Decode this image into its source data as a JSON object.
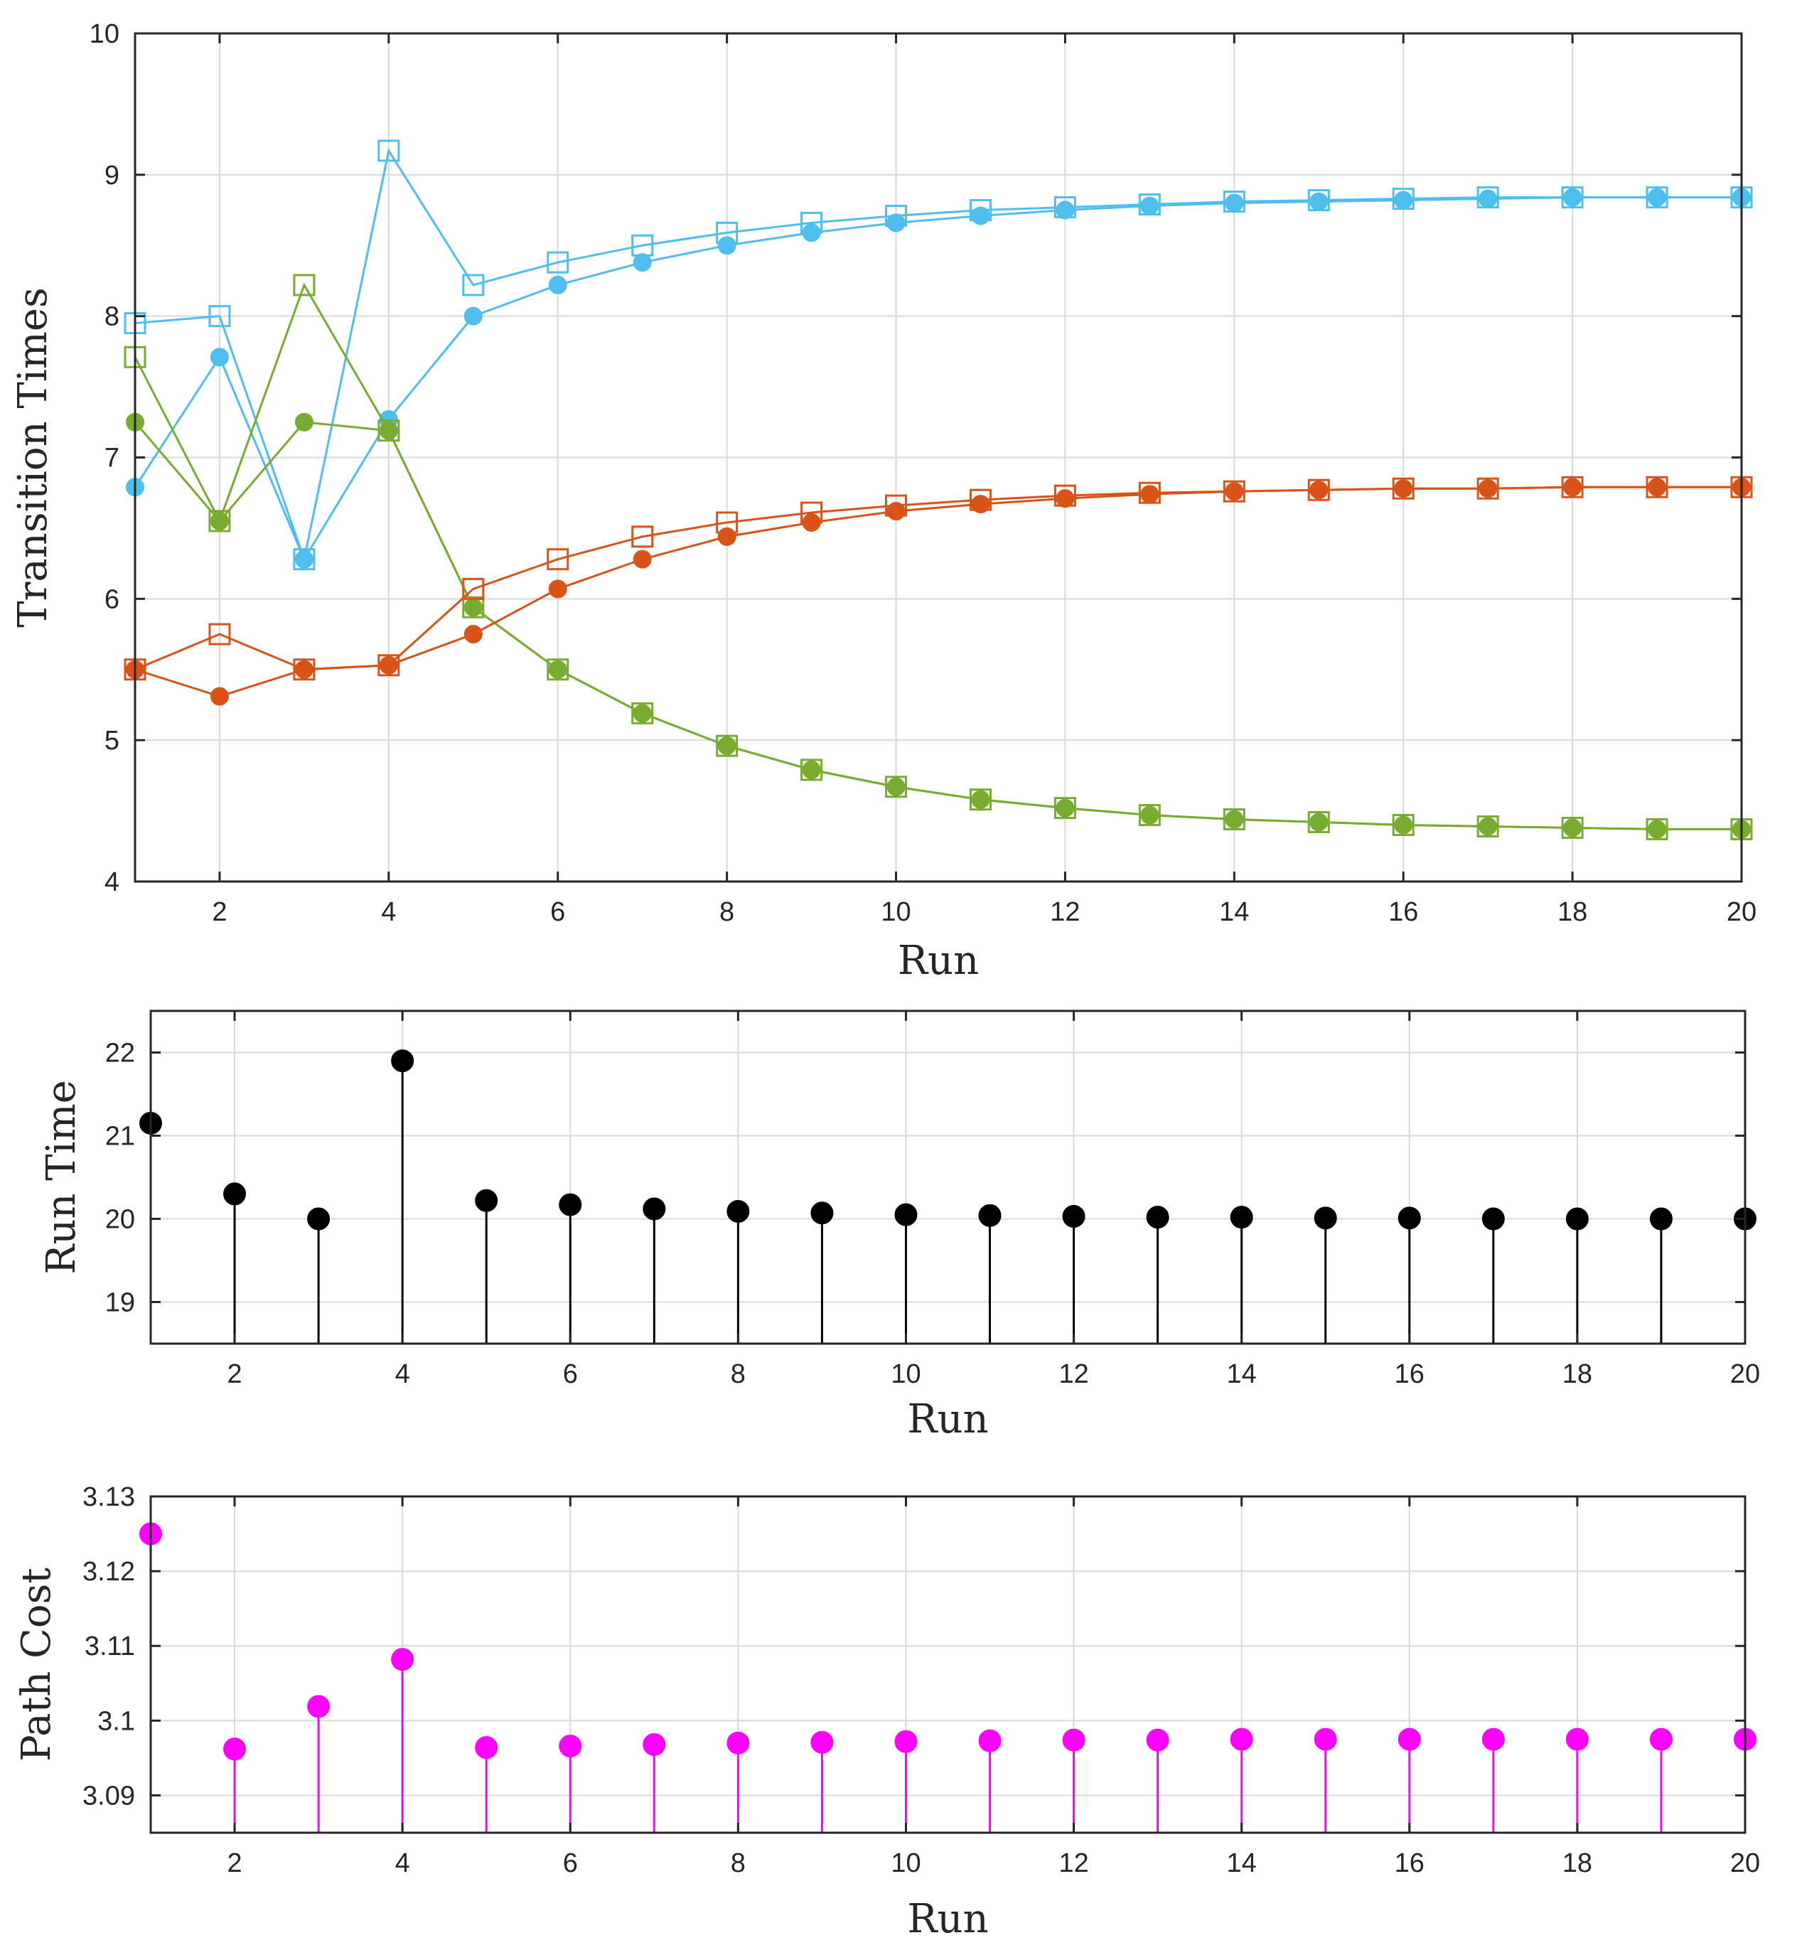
{
  "chart_data": [
    {
      "type": "line",
      "xlabel": "Run",
      "ylabel": "Transition Times",
      "xlim": [
        1,
        20
      ],
      "ylim": [
        4,
        10
      ],
      "xticks": [
        "2",
        "4",
        "6",
        "8",
        "10",
        "12",
        "14",
        "16",
        "18",
        "20"
      ],
      "yticks": [
        "4",
        "5",
        "6",
        "7",
        "8",
        "9",
        "10"
      ],
      "grid": true,
      "x": [
        1,
        2,
        3,
        4,
        5,
        6,
        7,
        8,
        9,
        10,
        11,
        12,
        13,
        14,
        15,
        16,
        17,
        18,
        19,
        20
      ],
      "series": [
        {
          "name": "blue-square",
          "color": "#4DBEEE",
          "marker": "square",
          "values": [
            7.95,
            8.0,
            6.28,
            9.17,
            8.22,
            8.38,
            8.5,
            8.59,
            8.66,
            8.71,
            8.75,
            8.77,
            8.79,
            8.81,
            8.82,
            8.83,
            8.84,
            8.84,
            8.84,
            8.84
          ]
        },
        {
          "name": "blue-circle",
          "color": "#4DBEEE",
          "marker": "circle",
          "values": [
            6.79,
            7.71,
            6.28,
            7.27,
            8.0,
            8.22,
            8.38,
            8.5,
            8.59,
            8.66,
            8.71,
            8.75,
            8.78,
            8.8,
            8.81,
            8.82,
            8.83,
            8.84,
            8.84,
            8.84
          ]
        },
        {
          "name": "green-square",
          "color": "#77AC30",
          "marker": "square",
          "values": [
            7.71,
            6.55,
            8.22,
            7.19,
            5.94,
            5.5,
            5.19,
            4.96,
            4.79,
            4.67,
            4.58,
            4.52,
            4.47,
            4.44,
            4.42,
            4.4,
            4.39,
            4.38,
            4.37,
            4.37
          ]
        },
        {
          "name": "green-circle",
          "color": "#77AC30",
          "marker": "circle",
          "values": [
            7.25,
            6.55,
            7.25,
            7.19,
            5.94,
            5.5,
            5.19,
            4.96,
            4.79,
            4.67,
            4.58,
            4.52,
            4.47,
            4.44,
            4.42,
            4.4,
            4.39,
            4.38,
            4.37,
            4.37
          ]
        },
        {
          "name": "orange-square",
          "color": "#D95319",
          "marker": "square",
          "values": [
            5.5,
            5.75,
            5.5,
            5.53,
            6.07,
            6.28,
            6.44,
            6.54,
            6.61,
            6.66,
            6.7,
            6.73,
            6.75,
            6.76,
            6.77,
            6.78,
            6.78,
            6.79,
            6.79,
            6.79
          ]
        },
        {
          "name": "orange-circle",
          "color": "#D95319",
          "marker": "circle",
          "values": [
            5.5,
            5.31,
            5.5,
            5.53,
            5.75,
            6.07,
            6.28,
            6.44,
            6.54,
            6.62,
            6.67,
            6.71,
            6.74,
            6.76,
            6.77,
            6.78,
            6.78,
            6.79,
            6.79,
            6.79
          ]
        }
      ]
    },
    {
      "type": "stem",
      "xlabel": "Run",
      "ylabel": "Run Time",
      "xlim": [
        1,
        20
      ],
      "ylim": [
        18.5,
        22.5
      ],
      "xticks": [
        "2",
        "4",
        "6",
        "8",
        "10",
        "12",
        "14",
        "16",
        "18",
        "20"
      ],
      "yticks": [
        "19",
        "20",
        "21",
        "22"
      ],
      "grid": true,
      "color": "#000000",
      "x": [
        1,
        2,
        3,
        4,
        5,
        6,
        7,
        8,
        9,
        10,
        11,
        12,
        13,
        14,
        15,
        16,
        17,
        18,
        19,
        20
      ],
      "values": [
        21.15,
        20.3,
        20.0,
        21.9,
        20.22,
        20.17,
        20.12,
        20.09,
        20.07,
        20.05,
        20.04,
        20.03,
        20.02,
        20.02,
        20.01,
        20.01,
        20.0,
        20.0,
        20.0,
        20.0
      ]
    },
    {
      "type": "stem",
      "xlabel": "Run",
      "ylabel": "Path Cost",
      "xlim": [
        1,
        20
      ],
      "ylim": [
        3.085,
        3.13
      ],
      "xticks": [
        "2",
        "4",
        "6",
        "8",
        "10",
        "12",
        "14",
        "16",
        "18",
        "20"
      ],
      "yticks": [
        "3.09",
        "3.1",
        "3.11",
        "3.12",
        "3.13"
      ],
      "grid": true,
      "color": "#FF00FF",
      "x": [
        1,
        2,
        3,
        4,
        5,
        6,
        7,
        8,
        9,
        10,
        11,
        12,
        13,
        14,
        15,
        16,
        17,
        18,
        19,
        20
      ],
      "values": [
        3.125,
        3.0962,
        3.1019,
        3.1082,
        3.0964,
        3.0966,
        3.0968,
        3.097,
        3.0971,
        3.0972,
        3.0973,
        3.0974,
        3.0974,
        3.0975,
        3.0975,
        3.0975,
        3.0975,
        3.0975,
        3.0975,
        3.0975
      ]
    }
  ]
}
